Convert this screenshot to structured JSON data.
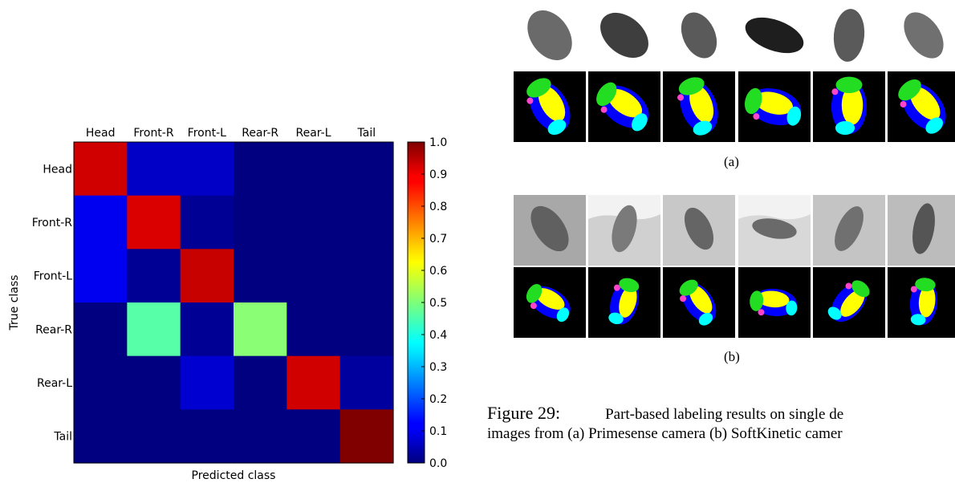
{
  "chart_data": {
    "type": "heatmap",
    "title": "",
    "xlabel": "Predicted class",
    "ylabel": "True class",
    "x_categories": [
      "Head",
      "Front-R",
      "Front-L",
      "Rear-R",
      "Rear-L",
      "Tail"
    ],
    "y_categories": [
      "Head",
      "Front-R",
      "Front-L",
      "Rear-R",
      "Rear-L",
      "Tail"
    ],
    "values": [
      [
        0.92,
        0.07,
        0.07,
        0.0,
        0.0,
        0.0
      ],
      [
        0.11,
        0.91,
        0.02,
        0.0,
        0.0,
        0.0
      ],
      [
        0.11,
        0.02,
        0.93,
        0.0,
        0.0,
        0.0
      ],
      [
        0.0,
        0.46,
        0.02,
        0.51,
        0.0,
        0.0
      ],
      [
        0.0,
        0.0,
        0.08,
        0.0,
        0.92,
        0.03
      ],
      [
        0.0,
        0.0,
        0.0,
        0.0,
        0.0,
        1.0
      ]
    ],
    "colormap": "jet",
    "colorbar_range": [
      0.0,
      1.0
    ],
    "colorbar_ticks": [
      "0.0",
      "0.1",
      "0.2",
      "0.3",
      "0.4",
      "0.5",
      "0.6",
      "0.7",
      "0.8",
      "0.9",
      "1.0"
    ]
  },
  "figure": {
    "subcaption_a": "(a)",
    "subcaption_b": "(b)",
    "caption_number": "Figure 29:",
    "caption_line1": "Part-based labeling results on single de",
    "caption_line2": "images from (a) Primesense camera (b) SoftKinetic camer"
  },
  "colors": {
    "jet_dark_blue": "#00007f",
    "jet_blue": "#0000ff",
    "jet_cyan": "#00ffff",
    "jet_yellow": "#ffff00",
    "jet_red": "#ff0000",
    "jet_dark_red": "#7f0000",
    "label_green": "#22dd22",
    "label_magenta": "#ff44cc"
  }
}
